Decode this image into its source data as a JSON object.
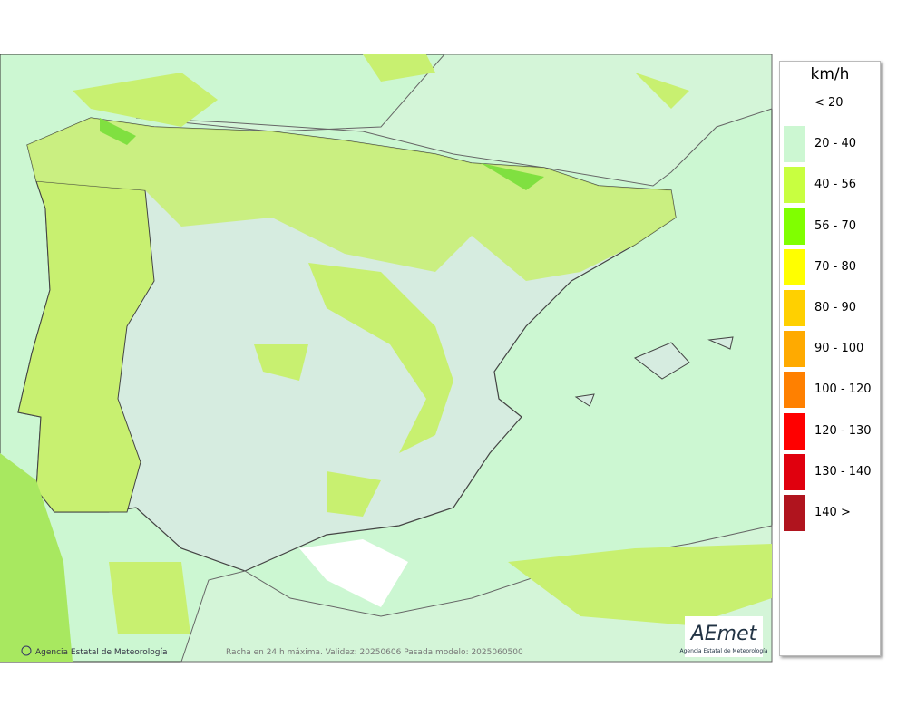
{
  "map": {
    "footer_left": "Agencia Estatal de Meteorología",
    "footer_center": "Racha en 24 h máxima. Validez: 20250606 Pasada modelo: 2025060500",
    "logo": {
      "name": "AEmet",
      "subtitle": "Agencia Estatal de Meteorología"
    }
  },
  "legend": {
    "unit": "km/h",
    "entries": [
      {
        "label": "< 20"
      },
      {
        "label": "20 - 40",
        "color": "#ccf7d2"
      },
      {
        "label": "40 - 56",
        "color": "#c8ff40"
      },
      {
        "label": "56 - 70",
        "color": "#80ff00"
      },
      {
        "label": "70 - 80",
        "color": "#ffff00"
      },
      {
        "label": "80 - 90",
        "color": "#ffd000"
      },
      {
        "label": "90 - 100",
        "color": "#ffaa00"
      },
      {
        "label": "100 - 120",
        "color": "#ff8000"
      },
      {
        "label": "120 - 130",
        "color": "#ff0000"
      },
      {
        "label": "130 - 140",
        "color": "#e0000e"
      },
      {
        "label": "140 >",
        "color": "#b0141e"
      }
    ]
  }
}
